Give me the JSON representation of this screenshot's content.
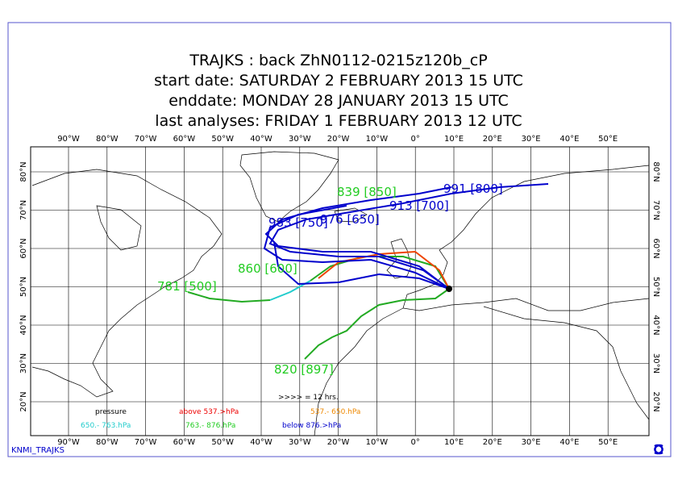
{
  "header": {
    "lines": [
      "TRAJKS : back ZhN0112-0215z120b_cP",
      "start date:  SATURDAY   2 FEBRUARY  2013 15 UTC",
      "enddate:  MONDAY    28 JANUARY   2013 15 UTC",
      "last analyses:  FRIDAY     1 FEBRUARY  2013 12 UTC"
    ]
  },
  "map": {
    "lon_labels": [
      "90°W",
      "80°W",
      "70°W",
      "60°W",
      "50°W",
      "40°W",
      "30°W",
      "20°W",
      "10°W",
      "0°",
      "10°E",
      "20°E",
      "30°E",
      "40°E",
      "50°E"
    ],
    "lat_labels": [
      "80°N",
      "70°N",
      "60°N",
      "50°N",
      "40°N",
      "30°N",
      "20°N"
    ],
    "trajectory_labels": [
      "839 [850]",
      "991 [800]",
      "913 [700]",
      "983 [750]",
      "976 [650]",
      "860 [600]",
      "781 [500]",
      "820 [897]"
    ]
  },
  "legend": {
    "marker": ">>>> = 12 hrs.",
    "items": [
      "pressure",
      "above  537.>hPa",
      "537.-  650.hPa",
      "650.-  763.hPa",
      "763.-  876.hPa",
      "below  876.>hPa"
    ]
  },
  "footer": "KNMI_TRAJKS"
}
